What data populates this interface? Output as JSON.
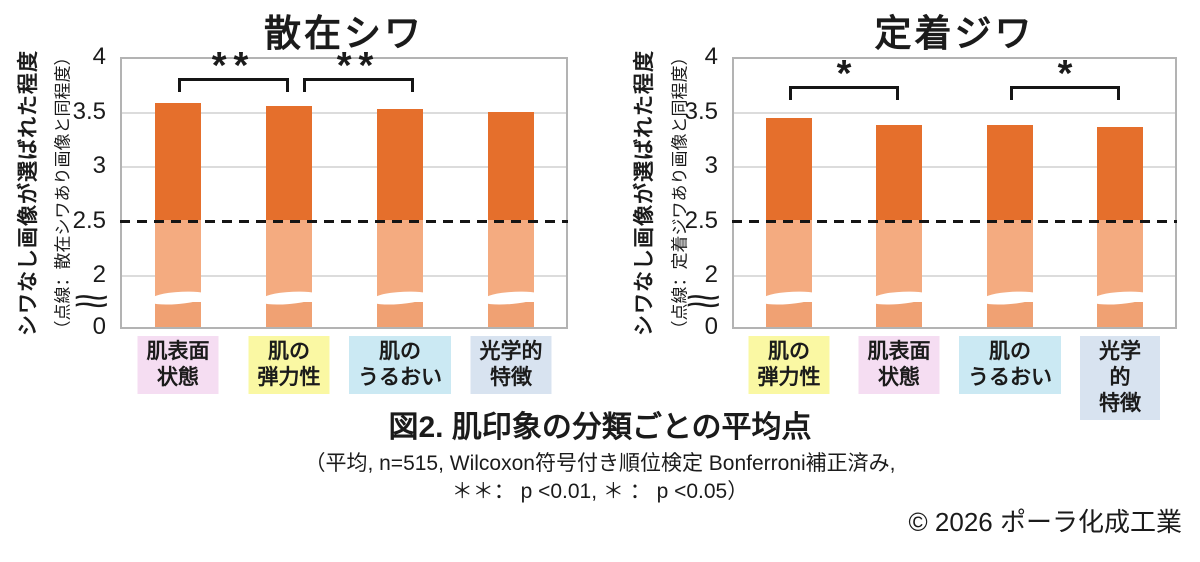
{
  "figure": {
    "caption_title": "図2. 肌印象の分類ごとの平均点",
    "caption_note_line1": "（平均, n=515, Wilcoxon符号付き順位検定 Bonferroni補正済み,",
    "caption_note_line2": "＊＊： p <0.01, ＊ ： p <0.05）",
    "copyright": "© 2026 ポーラ化成工業"
  },
  "colors": {
    "bar_above_reference": "#E56F2C",
    "bar_below_reference": "#F4AB80",
    "bar_below_break": "#F0A173",
    "gridline": "#DCDCDC",
    "plot_border": "#B3B3B3",
    "reference_line": "#151515",
    "text": "#1B1B1B"
  },
  "chart_data": [
    {
      "type": "bar",
      "title": "散在シワ",
      "ylabel": "シワなし画像が選ばれた程度",
      "ylabel_sub": "（点線：散在シワあり画像と同程度）",
      "categories": [
        "肌表面\n状態",
        "肌の\n弾力性",
        "肌の\nうるおい",
        "光学的\n特徴"
      ],
      "values": [
        3.58,
        3.55,
        3.52,
        3.5
      ],
      "category_highlight_colors": [
        "#F5DDF2",
        "#FAF8A3",
        "#CBE9F3",
        "#D8E3F0"
      ],
      "ylim": [
        0,
        4
      ],
      "yticks": [
        "4",
        "3.5",
        "3",
        "2.5",
        "2",
        "0"
      ],
      "ytick_values": [
        4,
        3.5,
        3,
        2.5,
        2,
        0
      ],
      "gridlines": [
        3.5,
        3,
        2
      ],
      "axis_break_between": [
        0,
        2
      ],
      "reference_line": 2.5,
      "reference_line_style": "dashed",
      "significance_brackets": [
        {
          "from_bar": 0,
          "to_bar": 1,
          "label": "**"
        },
        {
          "from_bar": 1,
          "to_bar": 2,
          "label": "**"
        }
      ]
    },
    {
      "type": "bar",
      "title": "定着ジワ",
      "ylabel": "シワなし画像が選ばれた程度",
      "ylabel_sub": "（点線：定着ジワあり画像と同程度）",
      "categories": [
        "肌の\n弾力性",
        "肌表面\n状態",
        "肌の\nうるおい",
        "光学的\n特徴"
      ],
      "values": [
        3.44,
        3.38,
        3.38,
        3.36
      ],
      "category_highlight_colors": [
        "#FAF8A3",
        "#F5DDF2",
        "#CBE9F3",
        "#D8E3F0"
      ],
      "ylim": [
        0,
        4
      ],
      "yticks": [
        "4",
        "3.5",
        "3",
        "2.5",
        "2",
        "0"
      ],
      "ytick_values": [
        4,
        3.5,
        3,
        2.5,
        2,
        0
      ],
      "gridlines": [
        3.5,
        3,
        2
      ],
      "axis_break_between": [
        0,
        2
      ],
      "reference_line": 2.5,
      "reference_line_style": "dashed",
      "significance_brackets": [
        {
          "from_bar": 0,
          "to_bar": 1,
          "label": "*"
        },
        {
          "from_bar": 2,
          "to_bar": 3,
          "label": "*"
        }
      ]
    }
  ]
}
